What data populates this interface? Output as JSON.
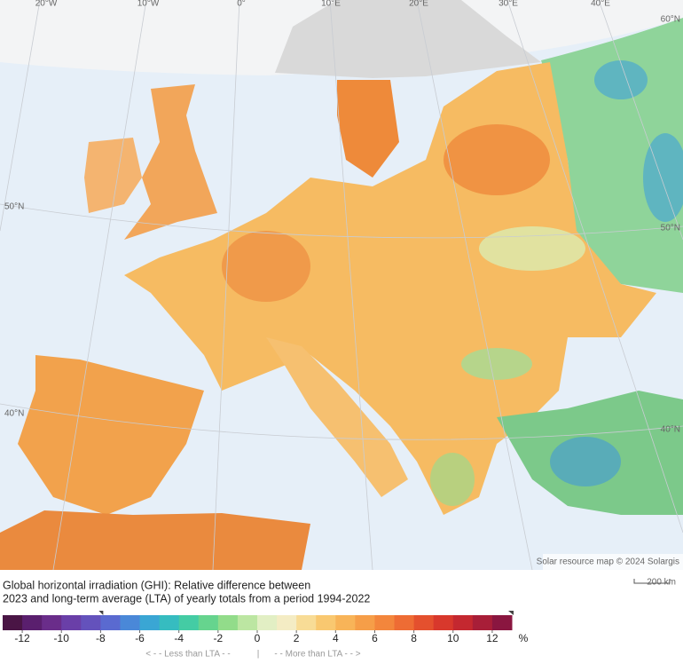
{
  "map": {
    "graticule_labels": [
      "20°W",
      "10°W",
      "0°",
      "10°E",
      "20°E",
      "30°E",
      "40°E",
      "60°N",
      "50°N",
      "50°N",
      "40°N",
      "40°N"
    ],
    "attribution": "Solar resource map © 2024 Solargis",
    "scale_label": "200 km"
  },
  "caption": [
    "Global horizontal irradiation (GHI): Relative difference between",
    "2023 and long-term average (LTA) of yearly totals from a period 1994-2022"
  ],
  "legend": {
    "range": [
      -13,
      13
    ],
    "ticks": [
      -12,
      -10,
      -8,
      -6,
      -4,
      -2,
      0,
      2,
      4,
      6,
      8,
      10,
      12
    ],
    "unit": "%",
    "colors": [
      "#4a1545",
      "#5a1f6e",
      "#6a2d8a",
      "#6a3fa8",
      "#6452bc",
      "#5a6ad0",
      "#4a88d8",
      "#3aa6d4",
      "#36bcc0",
      "#44cca4",
      "#66d48e",
      "#92dc8a",
      "#bce6a2",
      "#e2efc4",
      "#f4ecc4",
      "#f8dc96",
      "#f9c870",
      "#f8b458",
      "#f69e48",
      "#f3863c",
      "#ee6c34",
      "#e4502e",
      "#d8382c",
      "#c42830",
      "#a81e38",
      "#8a1640"
    ],
    "less_label": "< - -  Less than LTA  - -",
    "separator": "|",
    "more_label": "- -  More than LTA  - - >"
  }
}
